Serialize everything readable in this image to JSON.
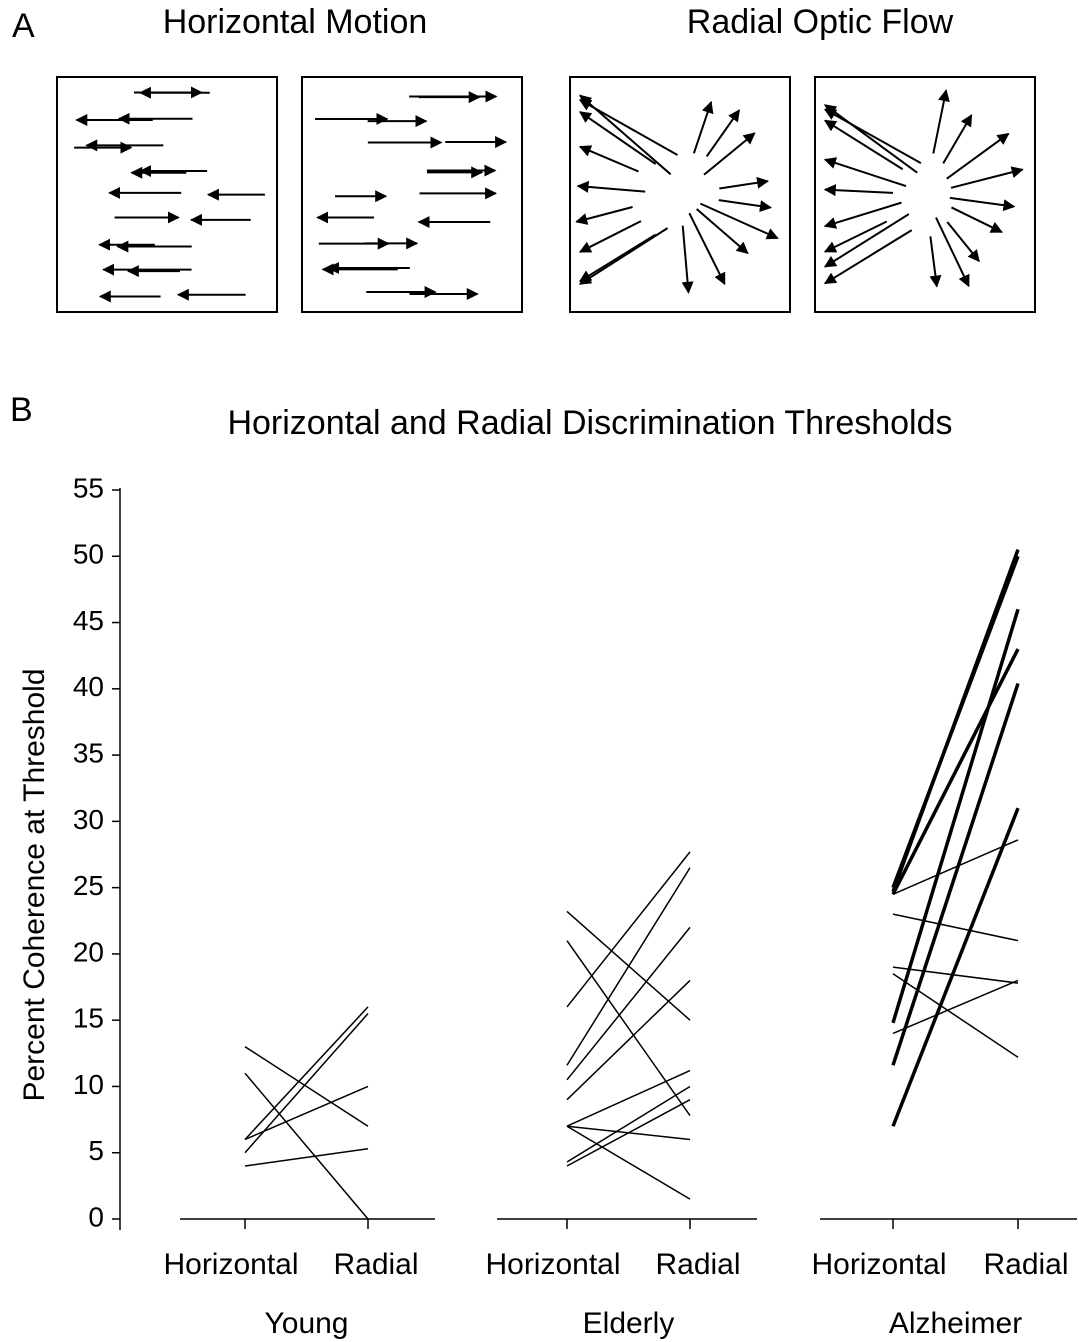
{
  "panel_a": {
    "label": "A",
    "left_title": "Horizontal Motion",
    "right_title": "Radial Optic Flow"
  },
  "panel_b_label": "B",
  "chart_data": {
    "type": "line",
    "title": "Horizontal and Radial Discrimination Thresholds",
    "y_label": "Percent Coherence at Threshold",
    "color": "#000000",
    "ylim": [
      0,
      55
    ],
    "yticks": [
      0,
      5,
      10,
      15,
      20,
      25,
      30,
      35,
      40,
      45,
      50,
      55
    ],
    "groups": [
      {
        "name": "Young",
        "categories": [
          "Horizontal",
          "Radial"
        ],
        "series": [
          {
            "values": [
              13,
              7
            ],
            "width": 1.5
          },
          {
            "values": [
              11,
              0
            ],
            "width": 1.5
          },
          {
            "values": [
              6,
              16
            ],
            "width": 1.5
          },
          {
            "values": [
              5,
              15.5
            ],
            "width": 1.5
          },
          {
            "values": [
              6,
              10
            ],
            "width": 1.5
          },
          {
            "values": [
              4,
              5.3
            ],
            "width": 1.5
          }
        ]
      },
      {
        "name": "Elderly",
        "categories": [
          "Horizontal",
          "Radial"
        ],
        "series": [
          {
            "values": [
              23.2,
              15
            ],
            "width": 1.5
          },
          {
            "values": [
              21,
              7.8
            ],
            "width": 1.5
          },
          {
            "values": [
              16,
              27.7
            ],
            "width": 1.5
          },
          {
            "values": [
              11.6,
              26.5
            ],
            "width": 1.5
          },
          {
            "values": [
              10.5,
              22
            ],
            "width": 1.5
          },
          {
            "values": [
              9,
              18
            ],
            "width": 1.5
          },
          {
            "values": [
              7,
              11.2
            ],
            "width": 1.5
          },
          {
            "values": [
              7,
              6
            ],
            "width": 1.5
          },
          {
            "values": [
              4.3,
              10
            ],
            "width": 1.5
          },
          {
            "values": [
              4,
              9
            ],
            "width": 1.5
          },
          {
            "values": [
              7,
              1.5
            ],
            "width": 1.5
          }
        ]
      },
      {
        "name": "Alzheimer",
        "categories": [
          "Horizontal",
          "Radial"
        ],
        "series": [
          {
            "values": [
              24.7,
              50.5
            ],
            "width": 3.5
          },
          {
            "values": [
              25,
              50
            ],
            "width": 3.5
          },
          {
            "values": [
              24.5,
              43
            ],
            "width": 3.5
          },
          {
            "values": [
              14.8,
              46
            ],
            "width": 3.5
          },
          {
            "values": [
              11.6,
              40.4
            ],
            "width": 3.5
          },
          {
            "values": [
              7,
              31
            ],
            "width": 3.5
          },
          {
            "values": [
              24.5,
              28.6
            ],
            "width": 1.5
          },
          {
            "values": [
              23,
              21
            ],
            "width": 1.5
          },
          {
            "values": [
              19,
              17.8
            ],
            "width": 1.5
          },
          {
            "values": [
              18.5,
              12.2
            ],
            "width": 1.5
          },
          {
            "values": [
              14,
              18
            ],
            "width": 1.5
          }
        ]
      }
    ]
  }
}
